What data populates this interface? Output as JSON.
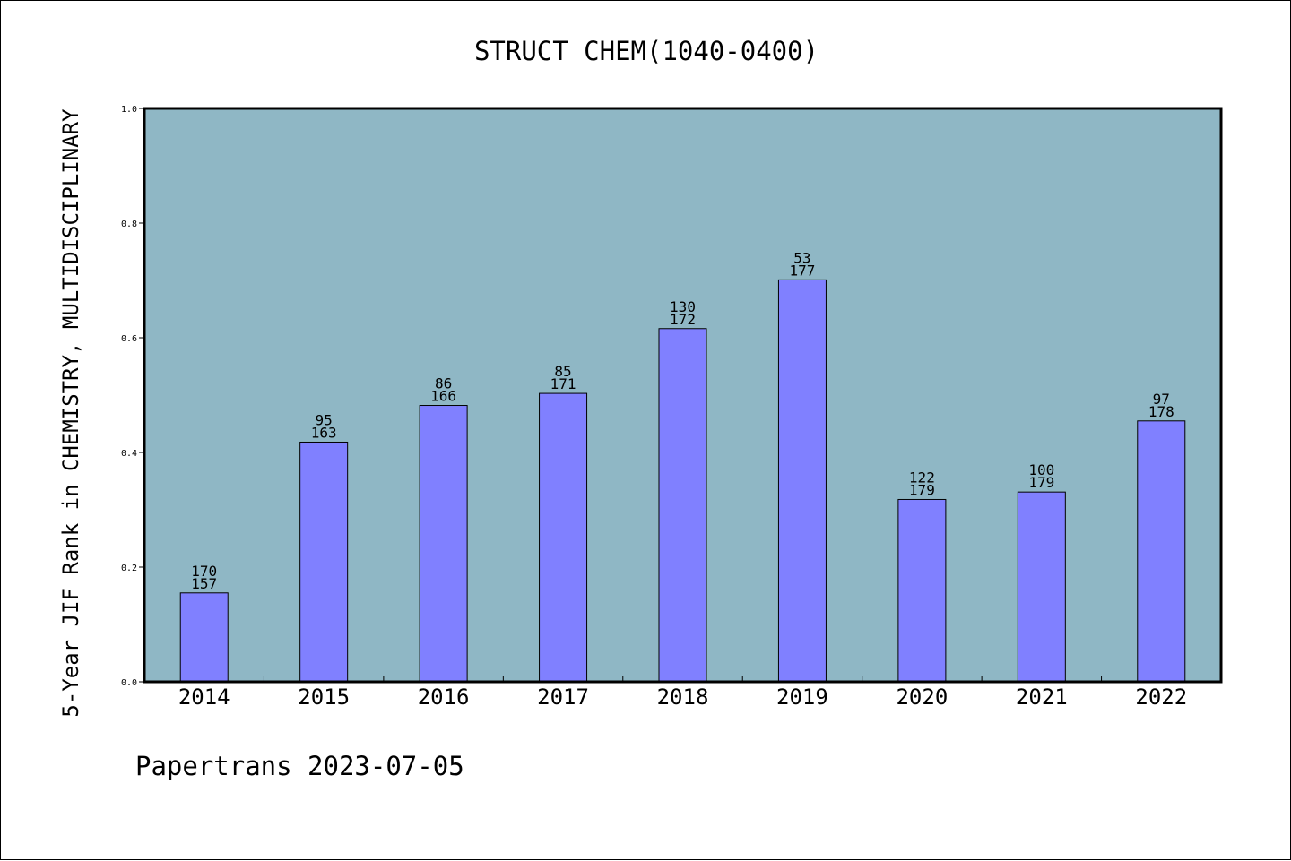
{
  "chart_data": {
    "type": "bar",
    "title": "STRUCT CHEM(1040-0400)",
    "ylabel": "5-Year JIF Rank in CHEMISTRY, MULTIDISCIPLINARY",
    "xlabel": "",
    "categories": [
      "2014",
      "2015",
      "2016",
      "2017",
      "2018",
      "2019",
      "2020",
      "2021",
      "2022"
    ],
    "values": [
      0.155,
      0.418,
      0.482,
      0.503,
      0.616,
      0.701,
      0.318,
      0.331,
      0.455
    ],
    "labels_top": [
      "170",
      "95",
      "86",
      "85",
      "130",
      "53",
      "122",
      "100",
      "97"
    ],
    "labels_bottom": [
      "157",
      "163",
      "166",
      "171",
      "172",
      "177",
      "179",
      "179",
      "178"
    ],
    "ylim": [
      0,
      1.0
    ],
    "yticks": [
      "0.0",
      "0.2",
      "0.4",
      "0.6",
      "0.8",
      "1.0"
    ],
    "grid": false,
    "colors": {
      "plot_background": "#8fb7c5",
      "bar": "#8080ff",
      "bar_edge": "#000000"
    }
  },
  "footer": "Papertrans 2023-07-05"
}
